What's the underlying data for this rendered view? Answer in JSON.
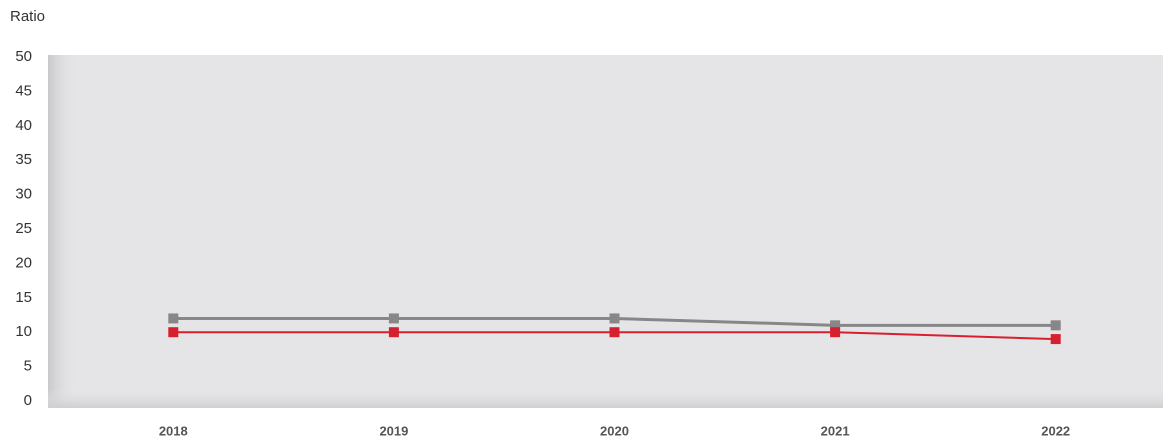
{
  "chart_data": {
    "type": "line",
    "y_label": "Ratio",
    "categories": [
      "2018",
      "2019",
      "2020",
      "2021",
      "2022"
    ],
    "series": [
      {
        "color": "#878787",
        "values": [
          12,
          12,
          12,
          11,
          11
        ]
      },
      {
        "color": "#d7202e",
        "values": [
          10,
          10,
          10,
          10,
          9
        ]
      }
    ],
    "ylim": [
      0,
      50
    ],
    "yticks": [
      0,
      5,
      10,
      15,
      20,
      25,
      30,
      35,
      40,
      45,
      50
    ]
  }
}
